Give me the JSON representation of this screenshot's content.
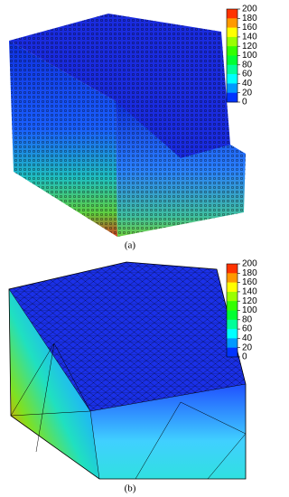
{
  "panels": [
    {
      "label": "(a)",
      "colorbar_ticks": [
        200,
        180,
        160,
        140,
        120,
        100,
        80,
        60,
        40,
        20,
        0
      ]
    },
    {
      "label": "(b)",
      "colorbar_ticks": [
        200,
        180,
        160,
        140,
        120,
        100,
        80,
        60,
        40,
        20,
        0
      ]
    }
  ]
}
